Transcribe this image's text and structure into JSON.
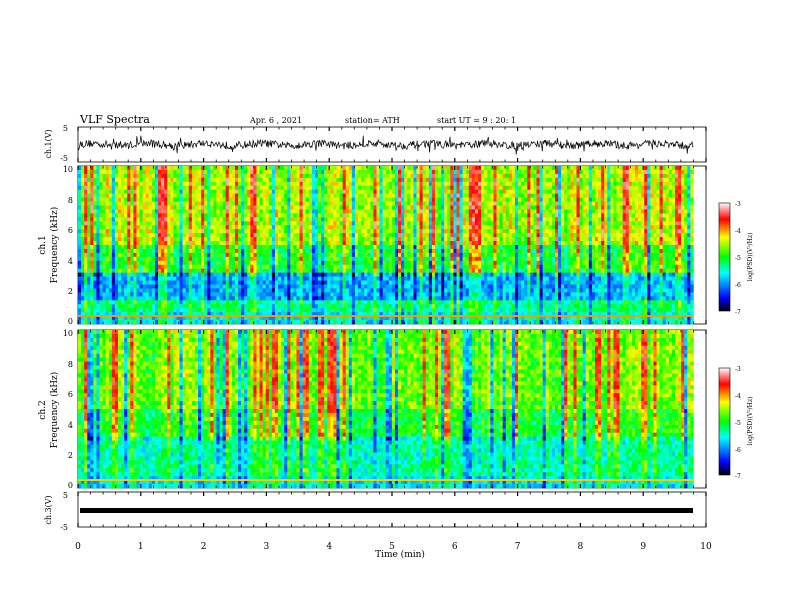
{
  "header": {
    "title": "VLF Spectra",
    "date": "Apr. 6 , 2021",
    "station": "station= ATH",
    "start": "start UT = 9 : 20: 1"
  },
  "chart_data": [
    {
      "id": "ch1-waveform",
      "type": "line",
      "ylabel": "ch.1(V)",
      "ylim": [
        -5,
        5
      ],
      "yticks": [
        "5",
        "-5"
      ],
      "xlim": [
        0,
        10
      ],
      "note": "dense noisy trace around ~0 V ending near 9.8 min"
    },
    {
      "id": "ch1-spectrogram",
      "type": "heatmap",
      "panel_label": "ch.1",
      "ylabel": "Frequency (kHz)",
      "ylim": [
        0,
        10
      ],
      "yticks": [
        "0",
        "2",
        "4",
        "6",
        "8",
        "10"
      ],
      "xlim": [
        0,
        9.8
      ],
      "colorbar": {
        "label": "log(PSD)(V²/Hz)",
        "range": [
          -7,
          -3
        ],
        "ticks": [
          "-3",
          "-4",
          "-5",
          "-6",
          "-7"
        ]
      }
    },
    {
      "id": "ch2-spectrogram",
      "type": "heatmap",
      "panel_label": "ch.2",
      "ylabel": "Frequency (kHz)",
      "ylim": [
        0,
        10
      ],
      "yticks": [
        "0",
        "2",
        "4",
        "6",
        "8",
        "10"
      ],
      "xlim": [
        0,
        9.8
      ],
      "colorbar": {
        "label": "log(PSD)(V²/Hz)",
        "range": [
          -7,
          -3
        ],
        "ticks": [
          "-3",
          "-4",
          "-5",
          "-6",
          "-7"
        ]
      }
    },
    {
      "id": "ch3-waveform",
      "type": "line",
      "ylabel": "ch.3(V)",
      "ylim": [
        -5,
        5
      ],
      "yticks": [
        "5",
        "-5"
      ],
      "xlim": [
        0,
        10
      ],
      "note": "thick flat trace near -1 V"
    }
  ],
  "xaxis": {
    "label": "Time (min)",
    "ticks": [
      "0",
      "1",
      "2",
      "3",
      "4",
      "5",
      "6",
      "7",
      "8",
      "9",
      "10"
    ]
  }
}
